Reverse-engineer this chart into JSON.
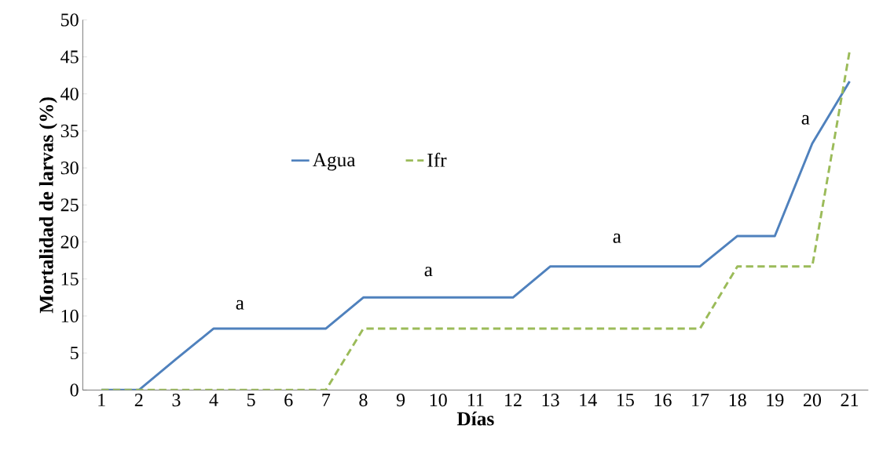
{
  "chart_data": {
    "type": "line",
    "xlabel": "Días",
    "ylabel": "Mortalidad de larvas (%)",
    "categories": [
      "1",
      "2",
      "3",
      "4",
      "5",
      "6",
      "7",
      "8",
      "9",
      "10",
      "11",
      "12",
      "13",
      "14",
      "15",
      "16",
      "17",
      "18",
      "19",
      "20",
      "21"
    ],
    "series": [
      {
        "name": "Agua",
        "color": "#4f81bd",
        "line_style": "solid",
        "values": [
          0,
          0,
          4.2,
          8.3,
          8.3,
          8.3,
          8.3,
          12.5,
          12.5,
          12.5,
          12.5,
          12.5,
          16.7,
          16.7,
          16.7,
          16.7,
          16.7,
          20.8,
          20.8,
          33.3,
          41.7
        ]
      },
      {
        "name": "Ifr",
        "color": "#9bbb59",
        "line_style": "dashed",
        "values": [
          0,
          0,
          0,
          0,
          0,
          0,
          0,
          8.3,
          8.3,
          8.3,
          8.3,
          8.3,
          8.3,
          8.3,
          8.3,
          8.3,
          8.3,
          16.7,
          16.7,
          16.7,
          45.8
        ]
      }
    ],
    "ylim": [
      0,
      50
    ],
    "yticks": [
      0,
      5,
      10,
      15,
      20,
      25,
      30,
      35,
      40,
      45,
      50
    ],
    "grid": false,
    "legend": "center",
    "marker": "none",
    "annotations": [
      "a",
      "a",
      "a",
      "a"
    ]
  }
}
